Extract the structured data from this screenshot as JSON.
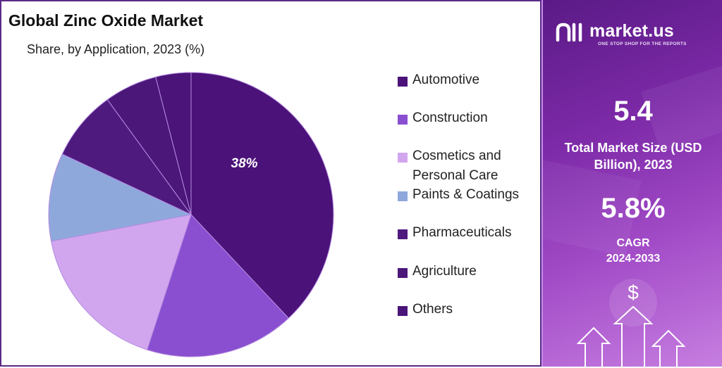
{
  "chart_data": {
    "type": "pie",
    "title": "Global Zinc Oxide Market",
    "subtitle": "Share, by Application, 2023 (%)",
    "categories": [
      "Automotive",
      "Construction",
      "Cosmetics and Personal Care",
      "Paints & Coatings",
      "Pharmaceuticals",
      "Agriculture",
      "Others"
    ],
    "values": [
      38,
      17,
      17,
      10,
      8,
      6,
      4
    ],
    "colors": [
      "#4b1279",
      "#8a4fd0",
      "#d2a6ef",
      "#8fa8dc",
      "#4e1a7e",
      "#4b1779",
      "#4a1478"
    ],
    "data_labels": [
      "38%",
      "",
      "",
      "",
      "",
      "",
      ""
    ],
    "legend": {
      "placement": "right",
      "items": [
        {
          "label": "Automotive",
          "color": "#4b1279"
        },
        {
          "label": "Construction",
          "color": "#8a4fd0"
        },
        {
          "label": "Cosmetics and Personal Care",
          "color": "#d2a6ef"
        },
        {
          "label": "Paints & Coatings",
          "color": "#8fa8dc"
        },
        {
          "label": "Pharmaceuticals",
          "color": "#4e1a7e"
        },
        {
          "label": "Agriculture",
          "color": "#4b1779"
        },
        {
          "label": "Others",
          "color": "#4a1478"
        }
      ]
    }
  },
  "brand": {
    "name": "market.us",
    "tagline": "ONE STOP SHOP FOR THE REPORTS"
  },
  "stats": {
    "market_size_value": "5.4",
    "market_size_label": "Total Market Size (USD Billion), 2023",
    "cagr_value": "5.8%",
    "cagr_label_line1": "CAGR",
    "cagr_label_line2": "2024-2033"
  },
  "icons": {
    "currency": "$"
  }
}
